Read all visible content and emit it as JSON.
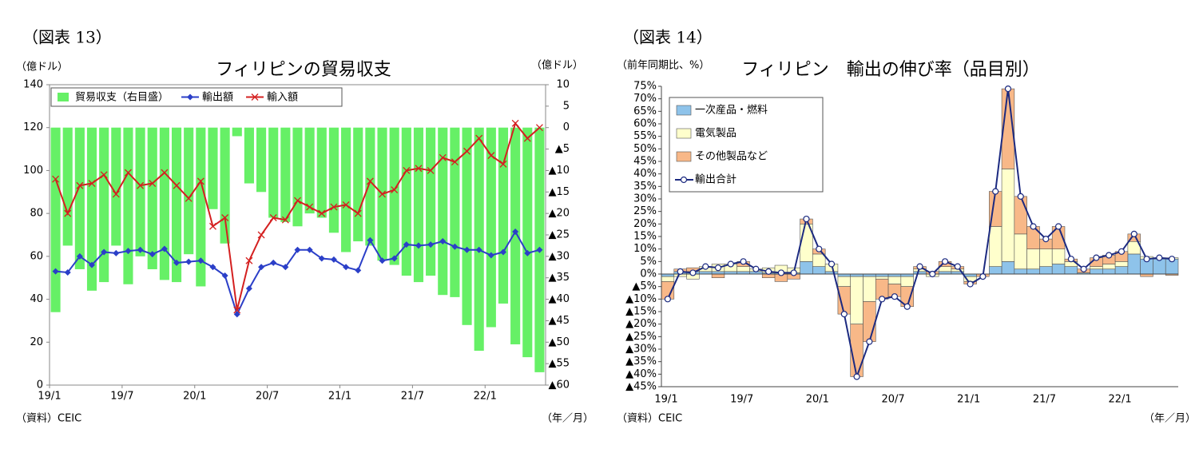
{
  "chart_data": [
    {
      "type": "combo",
      "figure_label": "（図表 13）",
      "title": "フィリピンの貿易収支",
      "y_label": "（億ドル）",
      "y2_label": "（億ドル）",
      "source": "（資料）CEIC",
      "x_label": "（年／月）",
      "categories": [
        "19/1",
        null,
        null,
        null,
        null,
        null,
        "19/7",
        null,
        null,
        null,
        null,
        null,
        "20/1",
        null,
        null,
        null,
        null,
        null,
        "20/7",
        null,
        null,
        null,
        null,
        null,
        "21/1",
        null,
        null,
        null,
        null,
        null,
        "21/7",
        null,
        null,
        null,
        null,
        null,
        "22/1",
        null,
        null,
        null,
        null
      ],
      "ylim": [
        0,
        140
      ],
      "yticks": [
        0,
        20,
        40,
        60,
        80,
        100,
        120,
        140
      ],
      "y2lim": [
        -60,
        10
      ],
      "y2ticks": [
        {
          "value": -60,
          "label": "▲60"
        },
        {
          "value": -55,
          "label": "▲55"
        },
        {
          "value": -50,
          "label": "▲50"
        },
        {
          "value": -45,
          "label": "▲45"
        },
        {
          "value": -40,
          "label": "▲40"
        },
        {
          "value": -35,
          "label": "▲35"
        },
        {
          "value": -30,
          "label": "▲30"
        },
        {
          "value": -25,
          "label": "▲25"
        },
        {
          "value": -20,
          "label": "▲20"
        },
        {
          "value": -15,
          "label": "▲15"
        },
        {
          "value": -10,
          "label": "▲10"
        },
        {
          "value": -5,
          "label": "▲5"
        },
        0,
        5,
        10
      ],
      "series": [
        {
          "name": "貿易収支（右目盛）",
          "kind": "bar",
          "axis": "y2",
          "color": "#66f066",
          "values": [
            -43,
            -27.5,
            -33,
            -38,
            -36,
            -27.5,
            -36.5,
            -30,
            -33,
            -35.5,
            -36,
            -29.5,
            -37,
            -19,
            -27,
            -2,
            -13,
            -15,
            -21,
            -22,
            -23,
            -20,
            -21,
            -24.5,
            -29,
            -26.5,
            -27.5,
            -31,
            -32,
            -34.5,
            -36,
            -34.5,
            -39,
            -39.5,
            -46,
            -52,
            -46.5,
            -41,
            -50.5,
            -53.5,
            -57
          ]
        },
        {
          "name": "輸出額",
          "kind": "line",
          "marker": "diamond",
          "color": "#2b3fc8",
          "values": [
            53,
            52.5,
            60,
            56,
            62,
            61.5,
            62.5,
            63,
            61,
            63.5,
            57,
            57.5,
            58,
            55,
            51,
            33,
            45,
            55,
            57,
            55,
            63,
            63,
            59,
            58.5,
            55,
            53.5,
            67.5,
            58,
            59,
            65.5,
            65,
            65.5,
            67,
            64.5,
            63,
            63,
            60.5,
            62,
            71.5,
            61.5,
            63
          ]
        },
        {
          "name": "輸入額",
          "kind": "line",
          "marker": "cross",
          "color": "#d42020",
          "values": [
            96,
            80,
            93,
            94,
            98,
            89,
            99,
            93,
            94,
            99,
            93,
            87,
            95,
            74,
            78,
            35,
            58,
            70,
            78,
            77,
            86,
            83,
            80,
            83,
            84,
            80,
            95,
            89,
            91,
            100,
            101,
            100,
            106,
            104,
            109,
            115,
            107,
            103,
            122,
            115,
            120
          ]
        }
      ]
    },
    {
      "type": "stacked",
      "figure_label": "（図表 14）",
      "title": "フィリピン　輸出の伸び率（品目別）",
      "y_label": "（前年同期比、%）",
      "source": "（資料）CEIC",
      "x_label": "（年／月）",
      "categories": [
        "19/1",
        null,
        null,
        null,
        null,
        null,
        "19/7",
        null,
        null,
        null,
        null,
        null,
        "20/1",
        null,
        null,
        null,
        null,
        null,
        "20/7",
        null,
        null,
        null,
        null,
        null,
        "21/1",
        null,
        null,
        null,
        null,
        null,
        "21/7",
        null,
        null,
        null,
        null,
        null,
        "22/1",
        null,
        null,
        null,
        null
      ],
      "ylim": [
        -45,
        75
      ],
      "yticks": [
        {
          "value": 75,
          "label": "75%"
        },
        {
          "value": 70,
          "label": "70%"
        },
        {
          "value": 65,
          "label": "65%"
        },
        {
          "value": 60,
          "label": "60%"
        },
        {
          "value": 55,
          "label": "55%"
        },
        {
          "value": 50,
          "label": "50%"
        },
        {
          "value": 45,
          "label": "45%"
        },
        {
          "value": 40,
          "label": "40%"
        },
        {
          "value": 35,
          "label": "35%"
        },
        {
          "value": 30,
          "label": "30%"
        },
        {
          "value": 25,
          "label": "25%"
        },
        {
          "value": 20,
          "label": "20%"
        },
        {
          "value": 15,
          "label": "15%"
        },
        {
          "value": 10,
          "label": "10%"
        },
        {
          "value": 5,
          "label": "5%"
        },
        {
          "value": 0,
          "label": "0%"
        },
        {
          "value": -5,
          "label": "▲5%"
        },
        {
          "value": -10,
          "label": "▲10%"
        },
        {
          "value": -15,
          "label": "▲15%"
        },
        {
          "value": -20,
          "label": "▲20%"
        },
        {
          "value": -25,
          "label": "▲25%"
        },
        {
          "value": -30,
          "label": "▲30%"
        },
        {
          "value": -35,
          "label": "▲35%"
        },
        {
          "value": -40,
          "label": "▲40%"
        },
        {
          "value": -45,
          "label": "▲45%"
        }
      ],
      "series": [
        {
          "name": "一次産品・燃料",
          "kind": "bar",
          "color": "#8ec3ea",
          "values": [
            -1,
            1,
            1,
            1,
            1,
            1,
            1,
            1,
            0.5,
            0.5,
            0.5,
            5,
            3,
            1,
            -1,
            -1,
            -1,
            -1,
            -1,
            -1,
            1,
            0,
            1,
            1,
            -1,
            0,
            3,
            5,
            2,
            2,
            3,
            4,
            3,
            0.5,
            2,
            2,
            3,
            8,
            6,
            6,
            6
          ]
        },
        {
          "name": "電気製品",
          "kind": "bar",
          "color": "#ffffcc",
          "values": [
            -2,
            -1,
            -2,
            2,
            3,
            3,
            2,
            1,
            2,
            3,
            2,
            15,
            5,
            3,
            -4,
            -19,
            -10,
            -1,
            -3,
            -4,
            1,
            -1,
            2,
            1,
            -2,
            0,
            16,
            37,
            14,
            8,
            7,
            6,
            2,
            0,
            1,
            2,
            2,
            5,
            1,
            0.5,
            0.5
          ]
        },
        {
          "name": "その他製品など",
          "kind": "bar",
          "color": "#f8b888",
          "values": [
            -7,
            1,
            1.5,
            0,
            -1.5,
            0,
            2,
            0,
            -1.5,
            -3,
            -2,
            2,
            2,
            0,
            -11,
            -21,
            -16,
            -8,
            -5,
            -8,
            1,
            1,
            2,
            1,
            -1,
            -1,
            14,
            32,
            15,
            9,
            4,
            9,
            1,
            1.5,
            3.5,
            3.5,
            4,
            3,
            -1,
            0,
            -0.5
          ]
        },
        {
          "name": "輸出合計",
          "kind": "line",
          "color": "#1c2a80",
          "values": [
            -10,
            1,
            0.5,
            3,
            2.5,
            4,
            5,
            2,
            1,
            0.5,
            0.5,
            22,
            10,
            4,
            -16,
            -41,
            -27,
            -10,
            -9,
            -13,
            3,
            0,
            5,
            3,
            -4,
            -1,
            33,
            74,
            31,
            19,
            14,
            19,
            6,
            2,
            6.5,
            7.5,
            9,
            16,
            6,
            6.5,
            6
          ]
        }
      ]
    }
  ]
}
